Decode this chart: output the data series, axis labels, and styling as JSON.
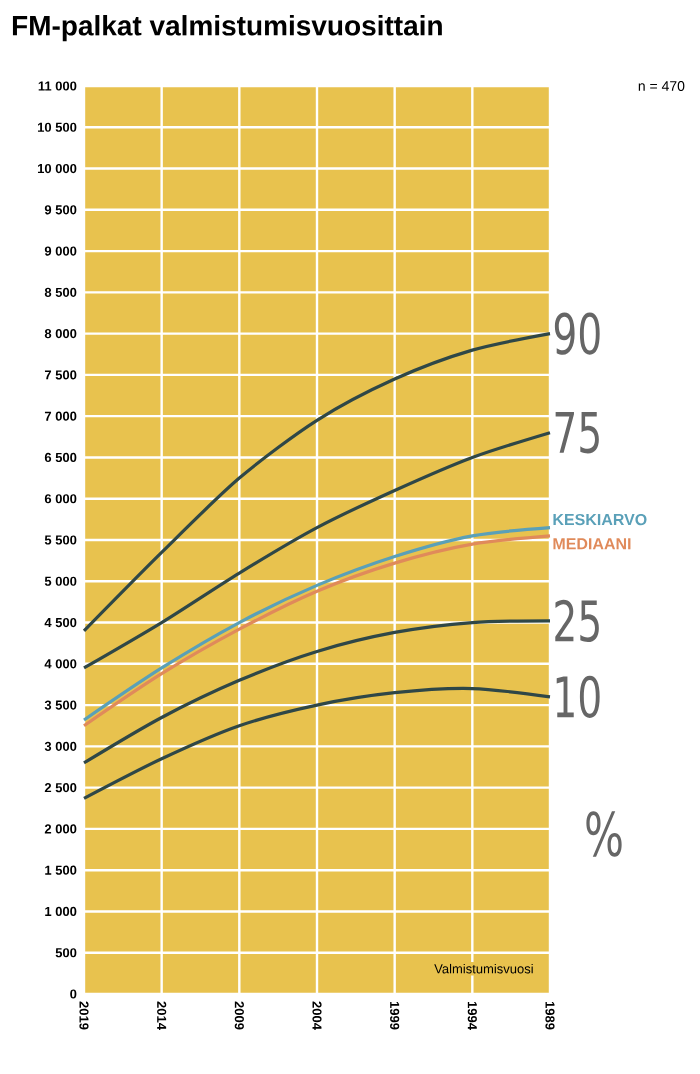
{
  "chart_data": {
    "type": "line",
    "title": "FM-palkat valmistumisvuosittain",
    "xlabel": "Valmistumisvuosi",
    "annotations": [
      "n = 470",
      "%"
    ],
    "x": [
      2019,
      2014,
      2009,
      2004,
      1999,
      1994,
      1989
    ],
    "xlim": [
      2019,
      1989
    ],
    "xticks": [
      2019,
      2014,
      2009,
      2004,
      1999,
      1994,
      1989
    ],
    "ylim": [
      0,
      11000
    ],
    "yticks": [
      0,
      500,
      {
        "value": 1000,
        "label": "1 000"
      },
      {
        "value": 1500,
        "label": "1 500"
      },
      {
        "value": 2000,
        "label": "2 000"
      },
      {
        "value": 2500,
        "label": "2 500"
      },
      {
        "value": 3000,
        "label": "3 000"
      },
      {
        "value": 3500,
        "label": "3 500"
      },
      {
        "value": 4000,
        "label": "4 000"
      },
      {
        "value": 4500,
        "label": "4 500"
      },
      {
        "value": 5000,
        "label": "5 000"
      },
      {
        "value": 5500,
        "label": "5 500"
      },
      {
        "value": 6000,
        "label": "6 000"
      },
      {
        "value": 6500,
        "label": "6 500"
      },
      {
        "value": 7000,
        "label": "7 000"
      },
      {
        "value": 7500,
        "label": "7 500"
      },
      {
        "value": 8000,
        "label": "8 000"
      },
      {
        "value": 8500,
        "label": "8 500"
      },
      {
        "value": 9000,
        "label": "9 000"
      },
      {
        "value": 9500,
        "label": "9 500"
      },
      {
        "value": 10000,
        "label": "10 000"
      },
      {
        "value": 10500,
        "label": "10 500"
      },
      {
        "value": 11000,
        "label": "11 000"
      }
    ],
    "grid": true,
    "marker": "none",
    "line_style": "solid",
    "series": [
      {
        "name": "90",
        "color": "#2f4747",
        "values": [
          4400,
          5350,
          6250,
          6950,
          7450,
          7800,
          8000
        ]
      },
      {
        "name": "75",
        "color": "#2f4747",
        "values": [
          3950,
          4500,
          5100,
          5650,
          6100,
          6500,
          6800
        ]
      },
      {
        "name": "KESKIARVO",
        "color": "#5aa0b8",
        "values": [
          3320,
          3950,
          4500,
          4950,
          5300,
          5550,
          5650
        ]
      },
      {
        "name": "MEDIAANI",
        "color": "#e08a5a",
        "values": [
          3250,
          3880,
          4420,
          4880,
          5220,
          5450,
          5550
        ]
      },
      {
        "name": "25",
        "color": "#2f4747",
        "values": [
          2800,
          3350,
          3800,
          4150,
          4380,
          4500,
          4520
        ]
      },
      {
        "name": "10",
        "color": "#2f4747",
        "values": [
          2370,
          2850,
          3250,
          3500,
          3650,
          3700,
          3600
        ]
      }
    ]
  }
}
